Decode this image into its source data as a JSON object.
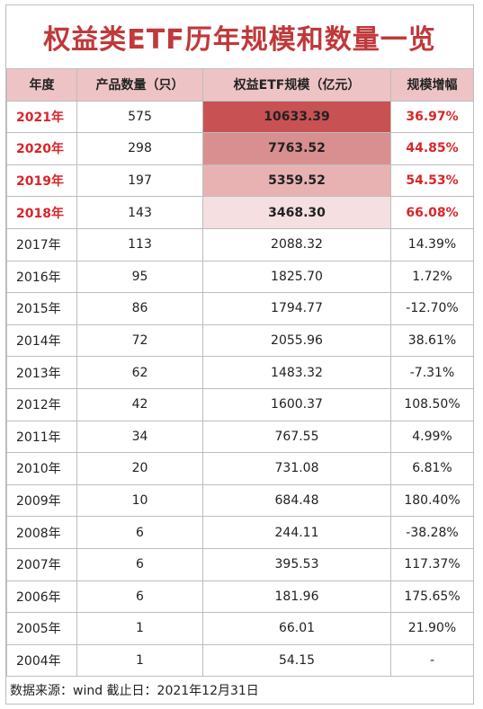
{
  "title": "权益类ETF历年规模和数量一览",
  "headers": [
    "年度",
    "产品数量（只）",
    "权益ETF规模（亿元）",
    "规模增幅"
  ],
  "rows": [
    {
      "year": "2021年",
      "count": "575",
      "scale": "10633.39",
      "growth": "36.97%"
    },
    {
      "year": "2020年",
      "count": "298",
      "scale": "7763.52",
      "growth": "44.85%"
    },
    {
      "year": "2019年",
      "count": "197",
      "scale": "5359.52",
      "growth": "54.53%"
    },
    {
      "year": "2018年",
      "count": "143",
      "scale": "3468.30",
      "growth": "66.08%"
    },
    {
      "year": "2017年",
      "count": "113",
      "scale": "2088.32",
      "growth": "14.39%"
    },
    {
      "year": "2016年",
      "count": "95",
      "scale": "1825.70",
      "growth": "1.72%"
    },
    {
      "year": "2015年",
      "count": "86",
      "scale": "1794.77",
      "growth": "-12.70%"
    },
    {
      "year": "2014年",
      "count": "72",
      "scale": "2055.96",
      "growth": "38.61%"
    },
    {
      "year": "2013年",
      "count": "62",
      "scale": "1483.32",
      "growth": "-7.31%"
    },
    {
      "year": "2012年",
      "count": "42",
      "scale": "1600.37",
      "growth": "108.50%"
    },
    {
      "year": "2011年",
      "count": "34",
      "scale": "767.55",
      "growth": "4.99%"
    },
    {
      "year": "2010年",
      "count": "20",
      "scale": "731.08",
      "growth": "6.81%"
    },
    {
      "year": "2009年",
      "count": "10",
      "scale": "684.48",
      "growth": "180.40%"
    },
    {
      "year": "2008年",
      "count": "6",
      "scale": "244.11",
      "growth": "-38.28%"
    },
    {
      "year": "2007年",
      "count": "6",
      "scale": "395.53",
      "growth": "117.37%"
    },
    {
      "year": "2006年",
      "count": "6",
      "scale": "181.96",
      "growth": "175.65%"
    },
    {
      "year": "2005年",
      "count": "1",
      "scale": "66.01",
      "growth": "21.90%"
    },
    {
      "year": "2004年",
      "count": "1",
      "scale": "54.15",
      "growth": "-"
    }
  ],
  "footer": "数据来源：wind  截止日：2021年12月31日",
  "colors": {
    "title": "#c0393b",
    "highlight_text": "#d8262a",
    "header_bg": "#eec3c5",
    "scale_heat": [
      "#c85153",
      "#d98f8f",
      "#e8b2b3",
      "#f6dfe0"
    ]
  }
}
